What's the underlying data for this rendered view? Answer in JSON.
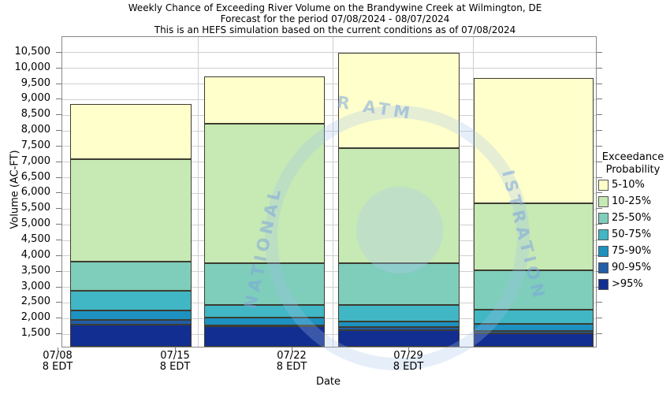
{
  "chart_data": {
    "type": "stacked-bar",
    "title_lines": [
      "Weekly Chance of Exceeding River Volume on the Brandywine Creek at Wilmington, DE",
      "Forecast for the period 07/08/2024 - 08/07/2024",
      "This is an HEFS simulation based on the current conditions as of 07/08/2024"
    ],
    "xlabel": "Date",
    "ylabel": "Volume (AC-FT)",
    "ylim": [
      1100,
      11000
    ],
    "yticks": [
      1500,
      2000,
      2500,
      3000,
      3500,
      4000,
      4500,
      5000,
      5500,
      6000,
      6500,
      7000,
      7500,
      8000,
      8500,
      9000,
      9500,
      10000,
      10500
    ],
    "grid": true,
    "legend": {
      "title_line1": "Exceedance",
      "title_line2": "Probability",
      "entries": [
        {
          "label": "5-10%",
          "color": "#FFFFCC"
        },
        {
          "label": "10-25%",
          "color": "#C7E9B4"
        },
        {
          "label": "25-50%",
          "color": "#7FCDBB"
        },
        {
          "label": "50-75%",
          "color": "#41B6C4"
        },
        {
          "label": "75-90%",
          "color": "#1D91C0"
        },
        {
          "label": "90-95%",
          "color": "#225EA8"
        },
        {
          "label": ">95%",
          "color": "#132E91"
        }
      ],
      "position": "right"
    },
    "categories": [
      "07/08",
      "07/15",
      "07/22",
      "07/29"
    ],
    "x_sublabels": [
      "8 EDT",
      "8 EDT",
      "8 EDT",
      "8 EDT"
    ],
    "bars": [
      {
        "date": "07/08",
        "time": "8 EDT",
        "levels": {
          "p5": 8850,
          "p10": 7100,
          "p25": 3820,
          "p50": 2900,
          "p75": 2250,
          "p90": 1950,
          "p95": 1800
        }
      },
      {
        "date": "07/15",
        "time": "8 EDT",
        "levels": {
          "p5": 9750,
          "p10": 8220,
          "p25": 3780,
          "p50": 2430,
          "p75": 2040,
          "p90": 1790,
          "p95": 1750
        }
      },
      {
        "date": "07/22",
        "time": "8 EDT",
        "levels": {
          "p5": 10500,
          "p10": 7460,
          "p25": 3770,
          "p50": 2430,
          "p75": 1900,
          "p90": 1740,
          "p95": 1640
        }
      },
      {
        "date": "07/29",
        "time": "8 EDT",
        "levels": {
          "p5": 9700,
          "p10": 5690,
          "p25": 3540,
          "p50": 2290,
          "p75": 1840,
          "p90": 1600,
          "p95": 1540
        }
      }
    ],
    "watermark_fragments": [
      "R ATM",
      "NATIONAL",
      "ISTRATION"
    ]
  }
}
